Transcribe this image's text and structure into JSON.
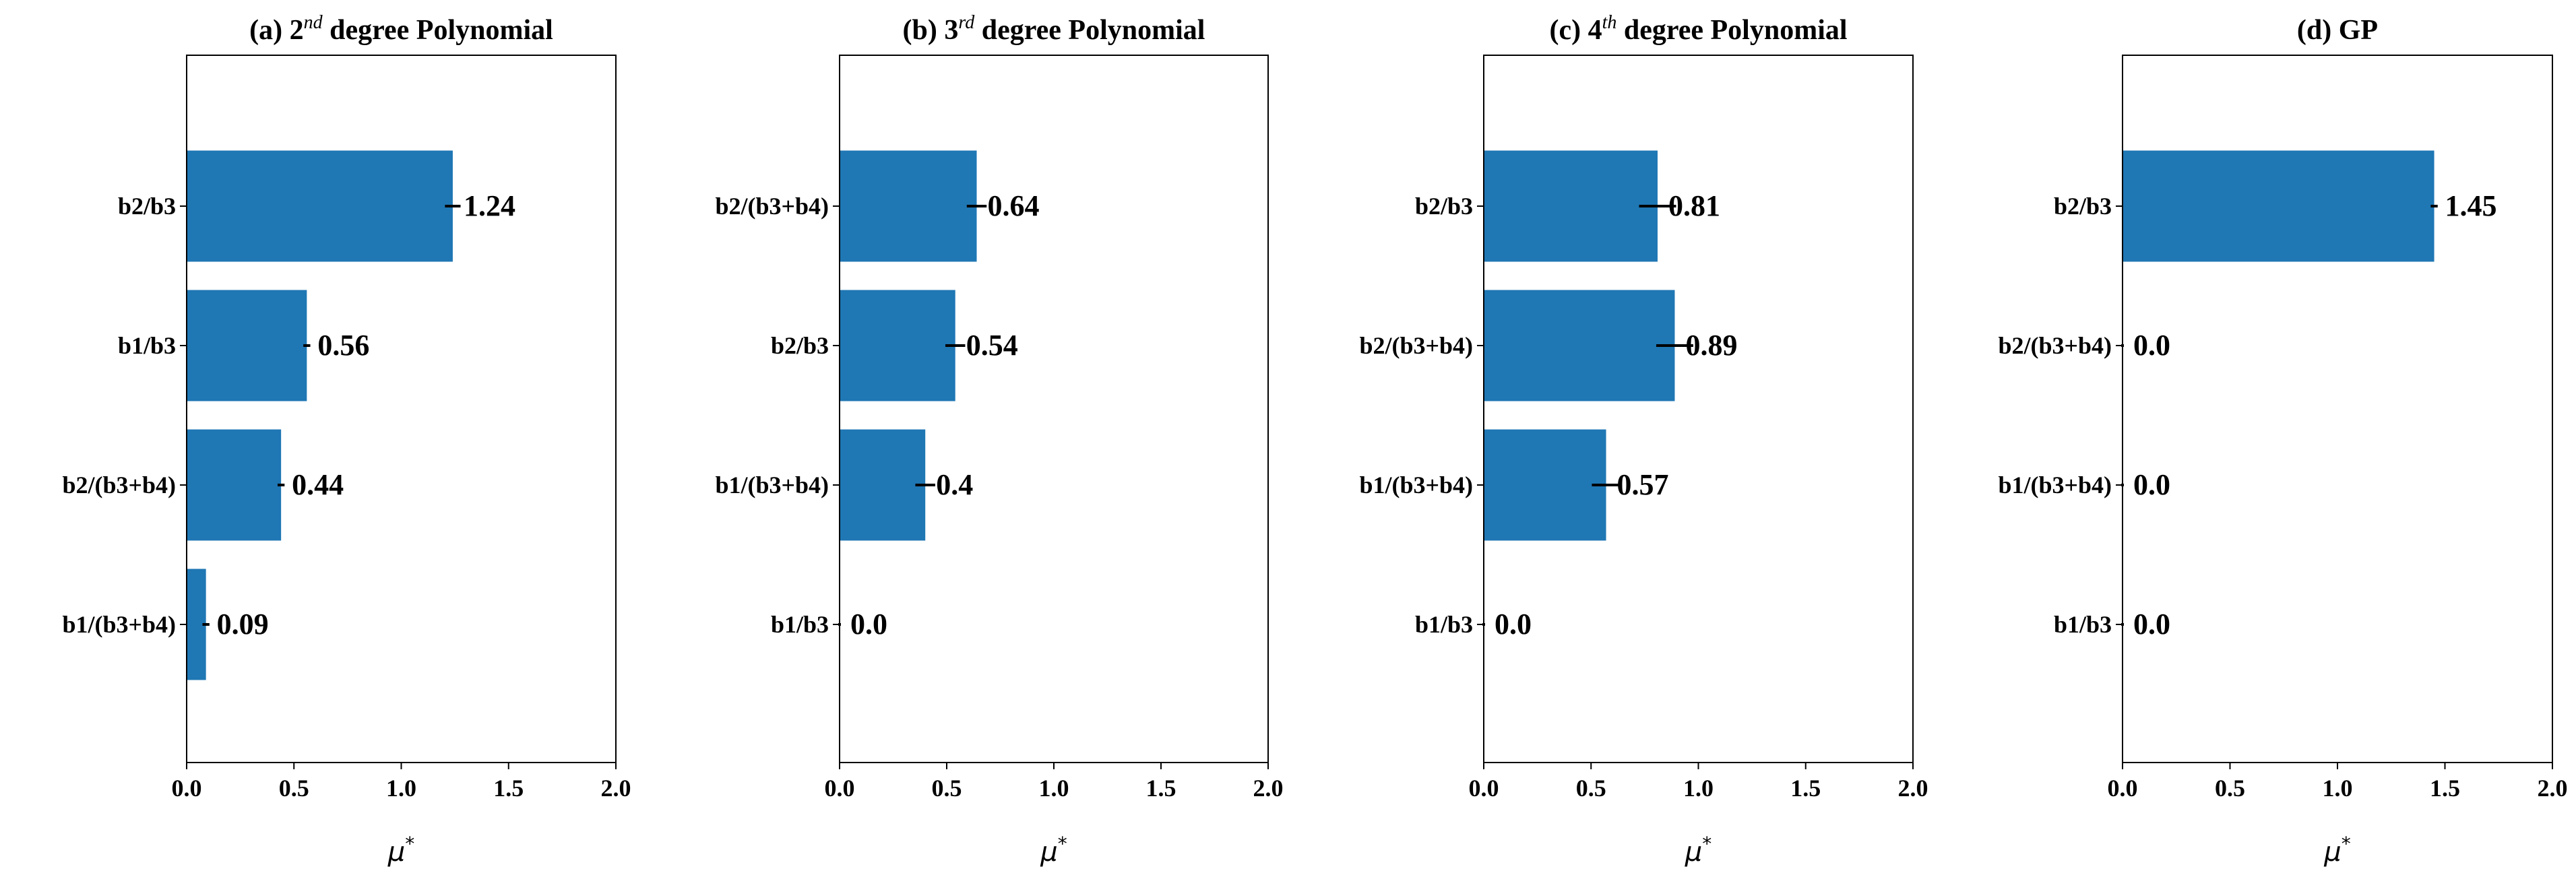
{
  "chart_data": [
    {
      "type": "bar",
      "orientation": "horizontal",
      "title_prefix": "(a) 2",
      "title_sup": "nd",
      "title_suffix": " degree Polynomial",
      "categories": [
        "b2/b3",
        "b1/b3",
        "b2/(b3+b4)",
        "b1/(b3+b4)"
      ],
      "values": [
        1.24,
        0.56,
        0.44,
        0.09
      ],
      "value_labels": [
        "1.24",
        "0.56",
        "0.44",
        "0.09"
      ],
      "errors": [
        0.03,
        0.01,
        0.01,
        0.01
      ],
      "xlim": [
        0.0,
        2.0
      ],
      "xticks": [
        "0.0",
        "0.5",
        "1.0",
        "1.5",
        "2.0"
      ],
      "xlabel": "μ",
      "xlabel_sup": "*",
      "bar_color": "#1f77b4"
    },
    {
      "type": "bar",
      "orientation": "horizontal",
      "title_prefix": "(b) 3",
      "title_sup": "rd",
      "title_suffix": " degree Polynomial",
      "categories": [
        "b2/(b3+b4)",
        "b2/b3",
        "b1/(b3+b4)",
        "b1/b3"
      ],
      "values": [
        0.64,
        0.54,
        0.4,
        0.0
      ],
      "value_labels": [
        "0.64",
        "0.54",
        "0.4",
        "0.0"
      ],
      "errors": [
        0.04,
        0.04,
        0.04,
        0.0
      ],
      "xlim": [
        0.0,
        2.0
      ],
      "xticks": [
        "0.0",
        "0.5",
        "1.0",
        "1.5",
        "2.0"
      ],
      "xlabel": "μ",
      "xlabel_sup": "*",
      "bar_color": "#1f77b4"
    },
    {
      "type": "bar",
      "orientation": "horizontal",
      "title_prefix": "(c) 4",
      "title_sup": "th",
      "title_suffix": " degree Polynomial",
      "categories": [
        "b2/b3",
        "b2/(b3+b4)",
        "b1/(b3+b4)",
        "b1/b3"
      ],
      "values": [
        0.81,
        0.89,
        0.57,
        0.0
      ],
      "value_labels": [
        "0.81",
        "0.89",
        "0.57",
        "0.0"
      ],
      "errors": [
        0.08,
        0.08,
        0.06,
        0.0
      ],
      "xlim": [
        0.0,
        2.0
      ],
      "xticks": [
        "0.0",
        "0.5",
        "1.0",
        "1.5",
        "2.0"
      ],
      "xlabel": "μ",
      "xlabel_sup": "*",
      "bar_color": "#1f77b4"
    },
    {
      "type": "bar",
      "orientation": "horizontal",
      "title_prefix": "(d) GP",
      "title_sup": "",
      "title_suffix": "",
      "categories": [
        "b2/b3",
        "b2/(b3+b4)",
        "b1/(b3+b4)",
        "b1/b3"
      ],
      "values": [
        1.45,
        0.0,
        0.0,
        0.0
      ],
      "value_labels": [
        "1.45",
        "0.0",
        "0.0",
        "0.0"
      ],
      "errors": [
        0.01,
        0.0,
        0.0,
        0.0
      ],
      "xlim": [
        0.0,
        2.0
      ],
      "xticks": [
        "0.0",
        "0.5",
        "1.0",
        "1.5",
        "2.0"
      ],
      "xlabel": "μ",
      "xlabel_sup": "*",
      "bar_color": "#1f77b4"
    }
  ]
}
